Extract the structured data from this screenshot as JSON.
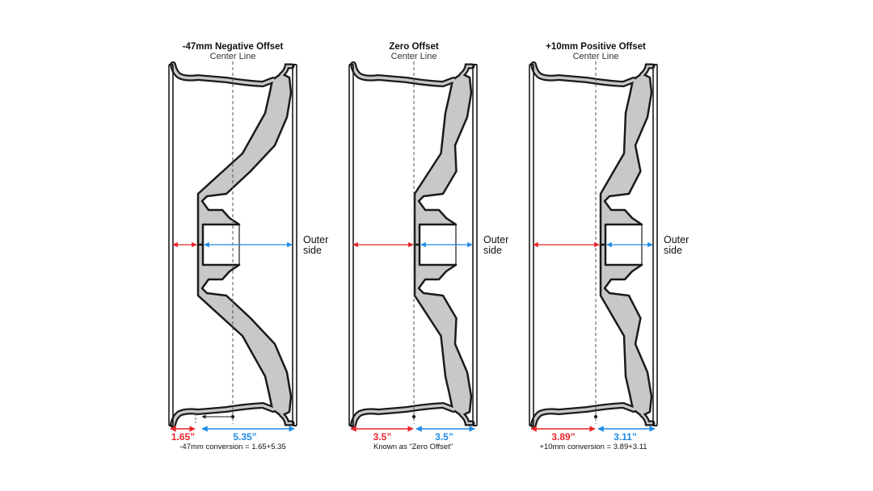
{
  "colors": {
    "inner": "#e8262b",
    "outer": "#1e8ce8",
    "metal": "#c8c8c8",
    "outline": "#1a1a1a"
  },
  "center_line_label": "Center Line",
  "outer_side_label": [
    "Outer",
    "side"
  ],
  "panels": [
    {
      "title": "-47mm Negative Offset",
      "inner_value": "1.65”",
      "outer_value": "5.35”",
      "note": "-47mm conversion = 1.65+5.35"
    },
    {
      "title": "Zero Offset",
      "inner_value": "3.5”",
      "outer_value": "3.5”",
      "note": "Known as “Zero Offset”"
    },
    {
      "title": "+10mm Positive Offset",
      "inner_value": "3.89”",
      "outer_value": "3.11”",
      "note": "+10mm conversion = 3.89+3.11"
    }
  ]
}
